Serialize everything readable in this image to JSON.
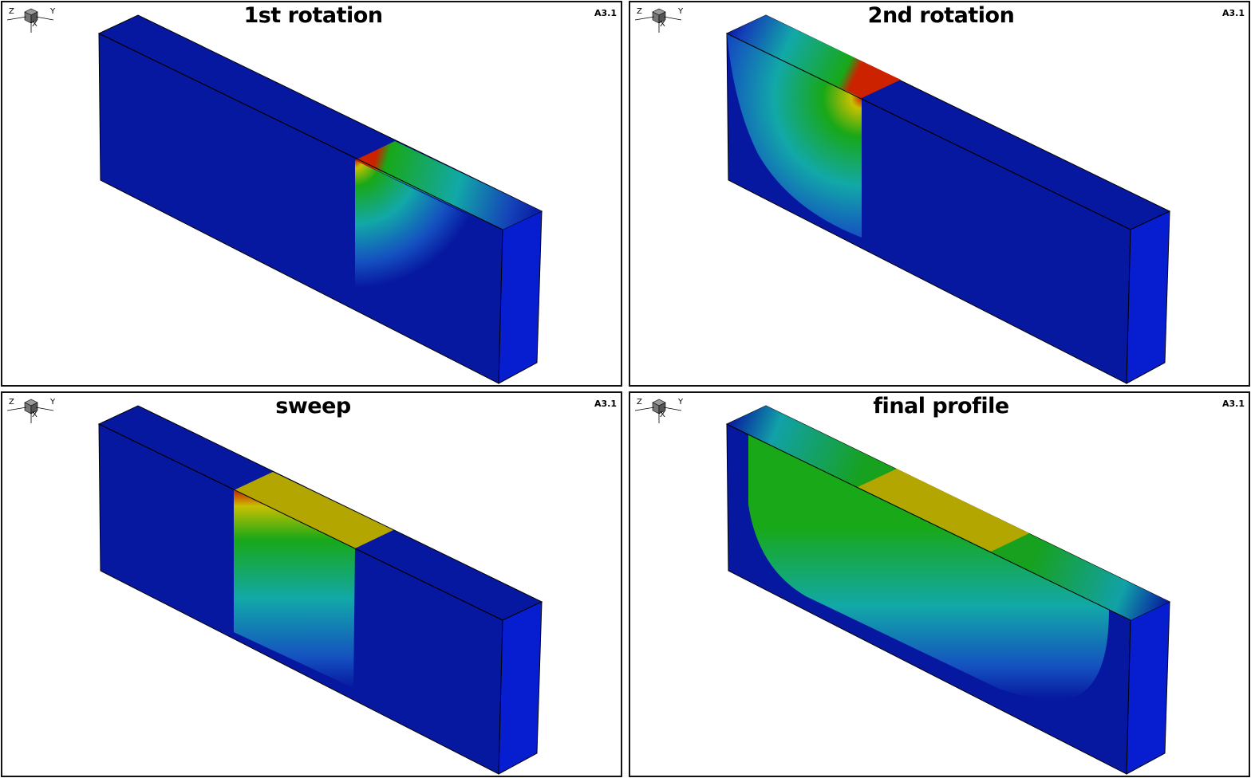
{
  "panels": [
    {
      "title": "1st rotation",
      "tag": "A3.1"
    },
    {
      "title": "2nd rotation",
      "tag": "A3.1"
    },
    {
      "title": "sweep",
      "tag": "A3.1"
    },
    {
      "title": "final profile",
      "tag": "A3.1"
    }
  ],
  "triad": {
    "z": "Z",
    "y": "Y",
    "x": "X"
  },
  "colors": {
    "front": "#0718a0",
    "side": "#061ecf",
    "top": "#0718a0",
    "hot": "#cc2200",
    "yellow": "#b4a600",
    "green": "#18a818",
    "teal": "#12a8a8"
  }
}
